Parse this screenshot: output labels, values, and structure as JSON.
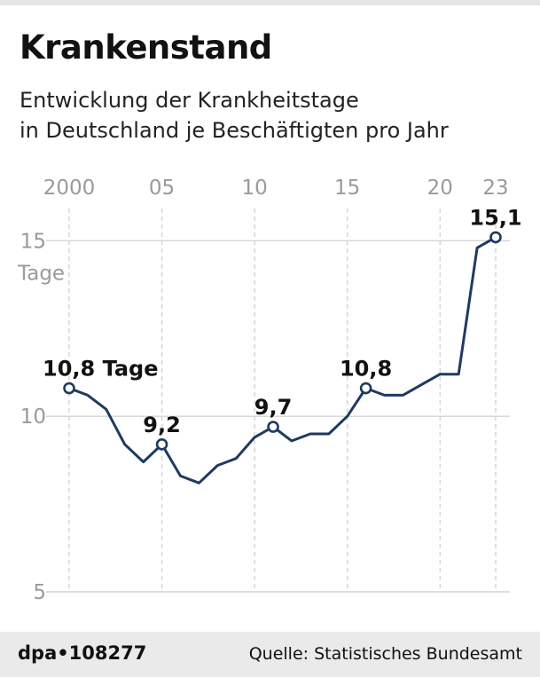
{
  "header": {
    "title": "Krankenstand",
    "subtitle_line1": "Entwicklung der Krankheitstage",
    "subtitle_line2": "in Deutschland je Beschäftigten pro Jahr"
  },
  "footer": {
    "brand": "dpa•108277",
    "source": "Quelle: Statistisches Bundesamt"
  },
  "colors": {
    "line": "#1f3a60",
    "grid": "#d4d4d4",
    "tick_text": "#9a9a9a",
    "label_text": "#111111"
  },
  "chart_data": {
    "type": "line",
    "title": "Krankenstand",
    "xlabel": "",
    "ylabel": "Tage",
    "ylim": [
      5,
      16.5
    ],
    "xlim": [
      2000,
      2023
    ],
    "y_ticks": [
      {
        "value": 15,
        "label": "15"
      },
      {
        "value": 10,
        "label": "10"
      },
      {
        "value": 5,
        "label": "5"
      }
    ],
    "y_unit_label": "Tage",
    "x_ticks": [
      {
        "value": 2000,
        "label": "2000"
      },
      {
        "value": 2005,
        "label": "05"
      },
      {
        "value": 2010,
        "label": "10"
      },
      {
        "value": 2015,
        "label": "15"
      },
      {
        "value": 2020,
        "label": "20"
      },
      {
        "value": 2023,
        "label": "23"
      }
    ],
    "series": [
      {
        "name": "Krankheitstage je Beschäftigten",
        "x": [
          2000,
          2001,
          2002,
          2003,
          2004,
          2005,
          2006,
          2007,
          2008,
          2009,
          2010,
          2011,
          2012,
          2013,
          2014,
          2015,
          2016,
          2017,
          2018,
          2019,
          2020,
          2021,
          2022,
          2023
        ],
        "values": [
          10.8,
          10.6,
          10.2,
          9.2,
          8.7,
          9.2,
          8.3,
          8.1,
          8.6,
          8.8,
          9.4,
          9.7,
          9.3,
          9.5,
          9.5,
          10.0,
          10.8,
          10.6,
          10.6,
          10.9,
          11.2,
          11.2,
          14.8,
          15.1
        ]
      }
    ],
    "annotations": [
      {
        "x": 2000,
        "value": 10.8,
        "text": "10,8 Tage"
      },
      {
        "x": 2005,
        "value": 9.2,
        "text": "9,2"
      },
      {
        "x": 2011,
        "value": 9.7,
        "text": "9,7"
      },
      {
        "x": 2016,
        "value": 10.8,
        "text": "10,8"
      },
      {
        "x": 2023,
        "value": 15.1,
        "text": "15,1"
      }
    ]
  }
}
